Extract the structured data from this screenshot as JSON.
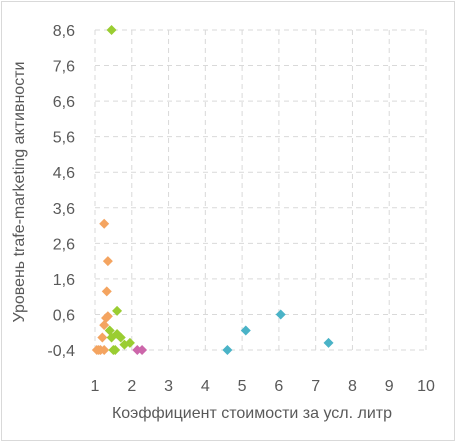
{
  "chart_data": {
    "type": "scatter",
    "xlabel": "Коэффициент стоимости за усл. литр",
    "ylabel": "Уровень trafe-marketing  активности",
    "xlim": [
      1,
      10
    ],
    "ylim": [
      -0.4,
      8.6
    ],
    "x_ticks": [
      1,
      2,
      3,
      4,
      5,
      6,
      7,
      8,
      9,
      10
    ],
    "y_ticks": [
      -0.4,
      0.6,
      1.6,
      2.6,
      3.6,
      4.6,
      5.6,
      6.6,
      7.6,
      8.6
    ],
    "x_tick_labels": [
      "1",
      "2",
      "3",
      "4",
      "5",
      "6",
      "7",
      "8",
      "9",
      "10"
    ],
    "y_tick_labels": [
      "-0,4",
      "0,6",
      "1,6",
      "2,6",
      "3,6",
      "4,6",
      "5,6",
      "6,6",
      "7,6",
      "8,6"
    ],
    "grid": true,
    "series": [
      {
        "color": "#f4a460",
        "points": [
          {
            "x": 1.05,
            "y": -0.4
          },
          {
            "x": 1.1,
            "y": -0.4
          },
          {
            "x": 1.15,
            "y": -0.4
          },
          {
            "x": 1.2,
            "y": -0.05
          },
          {
            "x": 1.25,
            "y": -0.4
          },
          {
            "x": 1.25,
            "y": 0.3
          },
          {
            "x": 1.3,
            "y": 0.5
          },
          {
            "x": 1.25,
            "y": 3.15
          },
          {
            "x": 1.35,
            "y": 2.1
          },
          {
            "x": 1.32,
            "y": 1.25
          },
          {
            "x": 1.35,
            "y": 0.55
          }
        ]
      },
      {
        "color": "#9acd32",
        "points": [
          {
            "x": 1.45,
            "y": 8.6
          },
          {
            "x": 1.4,
            "y": 0.15
          },
          {
            "x": 1.45,
            "y": -0.05
          },
          {
            "x": 1.5,
            "y": -0.4
          },
          {
            "x": 1.55,
            "y": -0.4
          },
          {
            "x": 1.6,
            "y": 0.7
          },
          {
            "x": 1.6,
            "y": 0.05
          },
          {
            "x": 1.7,
            "y": -0.05
          },
          {
            "x": 1.8,
            "y": -0.25
          },
          {
            "x": 1.95,
            "y": -0.2
          }
        ]
      },
      {
        "color": "#4ab3c7",
        "points": [
          {
            "x": 4.6,
            "y": -0.4
          },
          {
            "x": 5.1,
            "y": 0.15
          },
          {
            "x": 6.05,
            "y": 0.6
          },
          {
            "x": 7.35,
            "y": -0.2
          }
        ]
      },
      {
        "color": "#cc66aa",
        "points": [
          {
            "x": 2.15,
            "y": -0.4
          },
          {
            "x": 2.28,
            "y": -0.4
          }
        ]
      }
    ]
  }
}
